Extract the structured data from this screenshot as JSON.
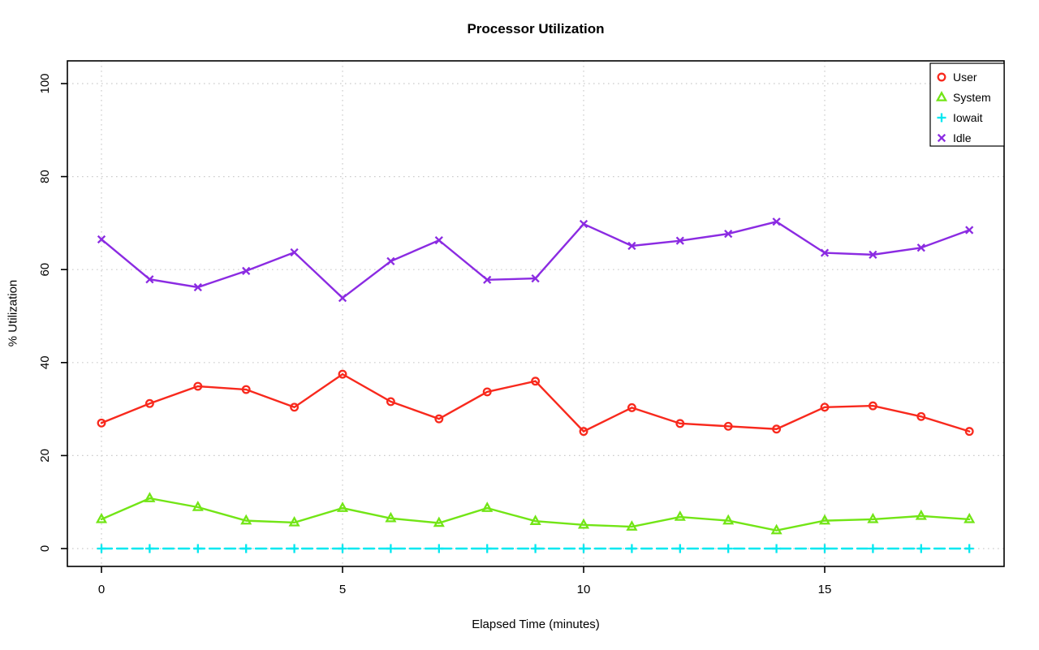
{
  "figure": {
    "title": "Processor Utilization",
    "xlabel": "Elapsed Time (minutes)",
    "ylabel": "% Utilization"
  },
  "chart_data": {
    "type": "line",
    "title": "Processor Utilization",
    "xlabel": "Elapsed Time (minutes)",
    "ylabel": "% Utilization",
    "x": [
      0,
      1,
      2,
      3,
      4,
      5,
      6,
      7,
      8,
      9,
      10,
      11,
      12,
      13,
      14,
      15,
      16,
      17,
      18
    ],
    "xlim": [
      0,
      18
    ],
    "ylim": [
      0,
      100
    ],
    "xticks": [
      0,
      5,
      10,
      15
    ],
    "yticks": [
      0,
      20,
      40,
      60,
      80,
      100
    ],
    "grid": true,
    "grid_color": "#cbcbcb",
    "background": "#ffffff",
    "legend_position": "top-right",
    "series": [
      {
        "name": "User",
        "color": "#f8291d",
        "marker": "circle",
        "line": "solid",
        "values": [
          27.0,
          31.2,
          34.9,
          34.2,
          30.4,
          37.5,
          31.6,
          27.9,
          33.7,
          36.0,
          25.2,
          30.3,
          26.9,
          26.3,
          25.7,
          30.4,
          30.7,
          28.4,
          25.2
        ]
      },
      {
        "name": "System",
        "color": "#72e516",
        "marker": "triangle",
        "line": "solid",
        "values": [
          6.3,
          10.8,
          8.9,
          6.0,
          5.6,
          8.7,
          6.5,
          5.5,
          8.7,
          5.9,
          5.1,
          4.7,
          6.8,
          6.0,
          3.9,
          6.0,
          6.3,
          7.0,
          6.3
        ]
      },
      {
        "name": "Iowait",
        "color": "#00e8f0",
        "marker": "plus",
        "line": "dashed",
        "values": [
          0,
          0,
          0,
          0,
          0,
          0,
          0,
          0,
          0,
          0,
          0,
          0,
          0,
          0,
          0,
          0,
          0,
          0,
          0
        ]
      },
      {
        "name": "Idle",
        "color": "#8b2be2",
        "marker": "x",
        "line": "solid",
        "values": [
          66.5,
          57.9,
          56.2,
          59.7,
          63.7,
          53.9,
          61.8,
          66.3,
          57.8,
          58.1,
          69.8,
          65.1,
          66.2,
          67.7,
          70.3,
          63.6,
          63.2,
          64.7,
          68.5
        ]
      }
    ]
  }
}
